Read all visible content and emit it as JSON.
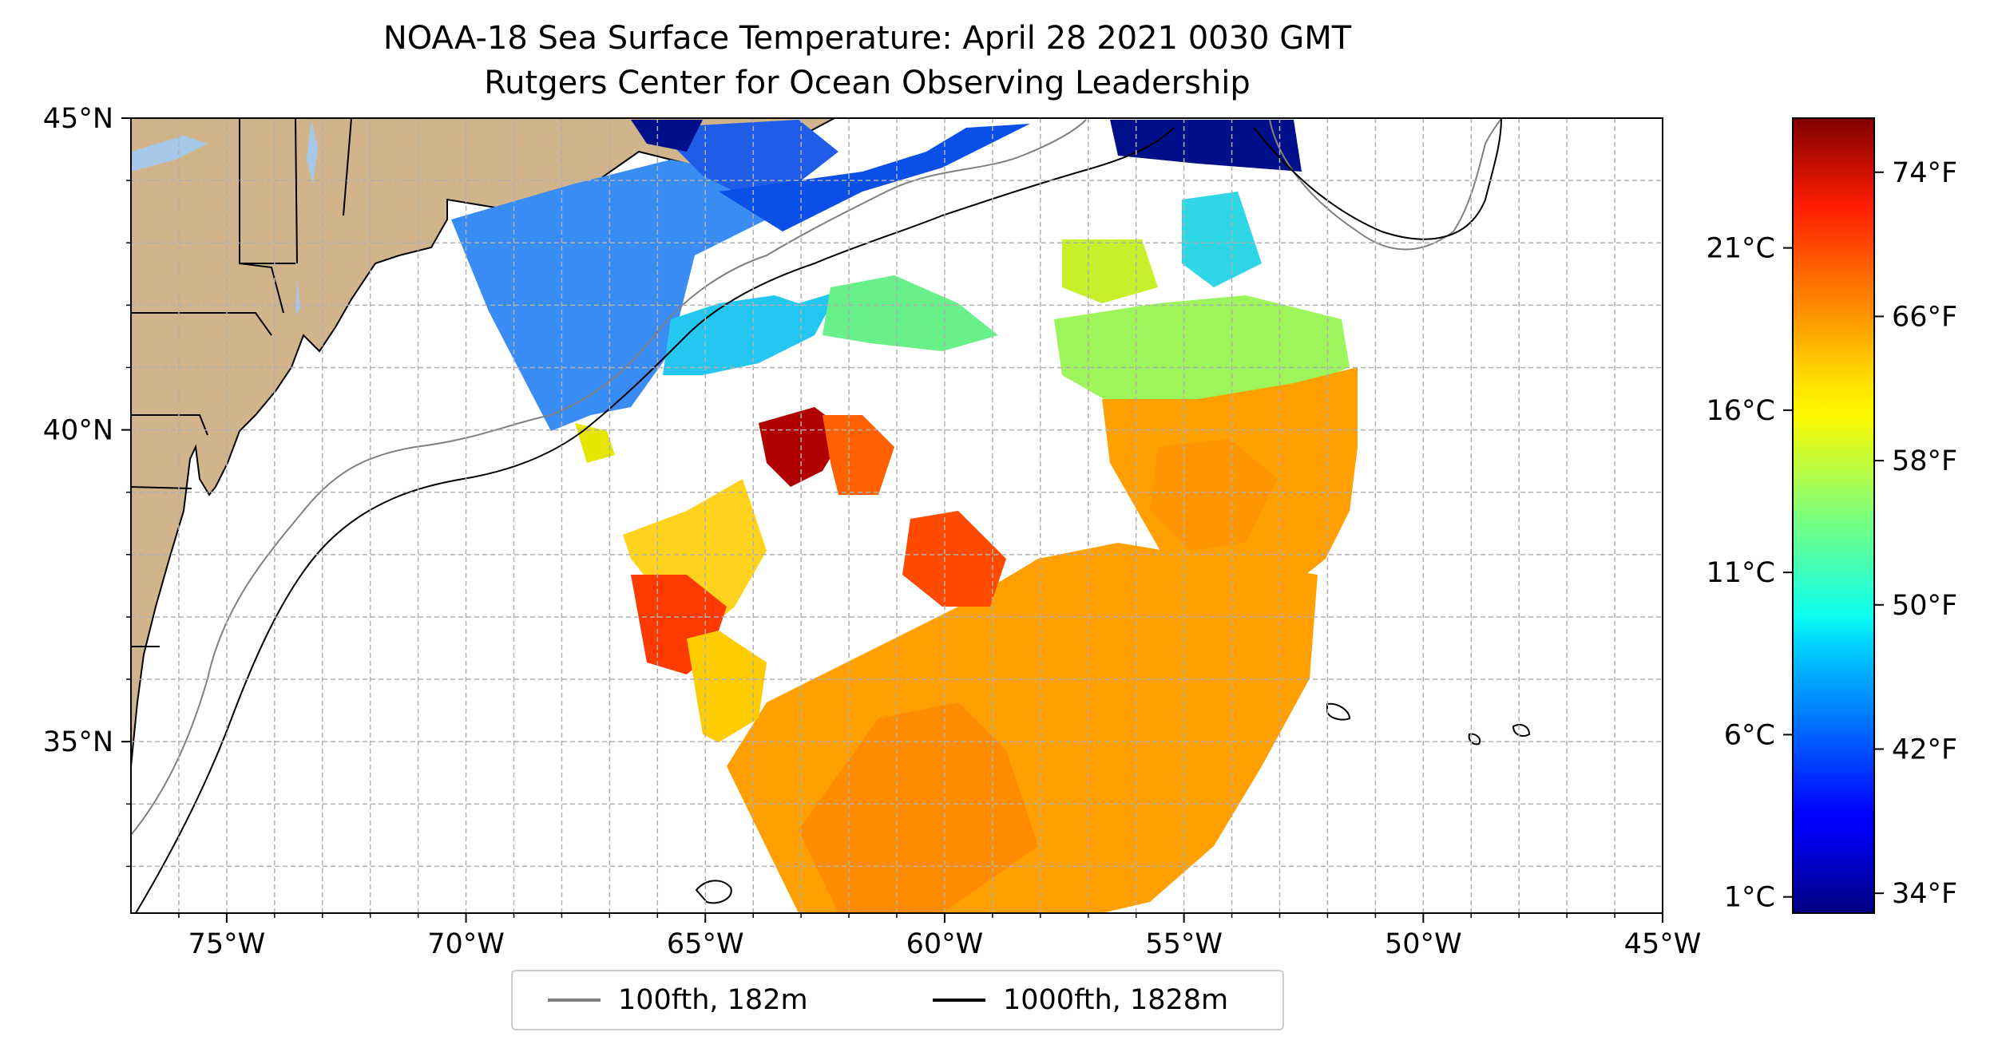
{
  "title": {
    "line1": "NOAA-18 Sea Surface Temperature: April 28 2021 0030 GMT",
    "line2": "Rutgers Center for Ocean Observing Leadership"
  },
  "map": {
    "lon_ticks": [
      "75°W",
      "70°W",
      "65°W",
      "60°W",
      "55°W",
      "50°W",
      "45°W"
    ],
    "lat_ticks": [
      "45°N",
      "40°N",
      "35°N"
    ],
    "extent": {
      "lon": [
        -77,
        -45
      ],
      "lat": [
        32.25,
        45
      ]
    },
    "gridlines": true,
    "land_color": "#d2b48c",
    "lake_color": "#a6c8e8"
  },
  "legend": {
    "position": "bottom-center",
    "items": [
      {
        "label": "100fth, 182m",
        "color": "#808080"
      },
      {
        "label": "1000fth, 1828m",
        "color": "#000000"
      }
    ]
  },
  "colorbar": {
    "colormap": "jet",
    "celsius_ticks": [
      "21°C",
      "16°C",
      "11°C",
      "6°C",
      "1°C"
    ],
    "fahrenheit_ticks": [
      "74°F",
      "66°F",
      "58°F",
      "50°F",
      "42°F",
      "34°F"
    ],
    "celsius_values": [
      21,
      16,
      11,
      6,
      1
    ],
    "fahrenheit_values": [
      74,
      66,
      58,
      50,
      42,
      34
    ],
    "range_c": [
      0.5,
      25
    ]
  }
}
